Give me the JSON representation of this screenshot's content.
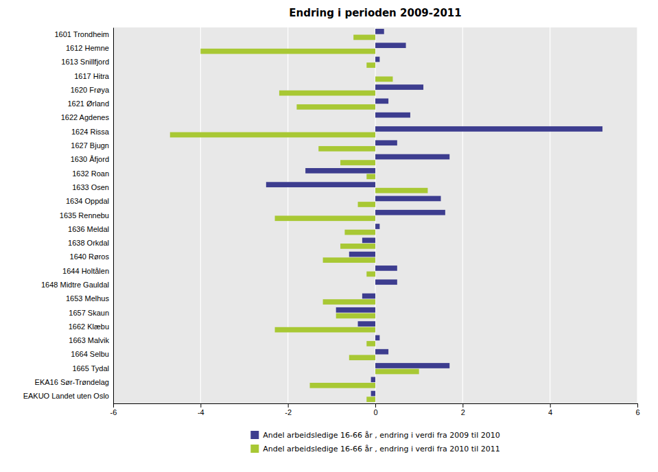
{
  "chart_data": {
    "type": "bar",
    "orientation": "horizontal",
    "title": "Endring i perioden 2009-2011",
    "categories": [
      "1601 Trondheim",
      "1612 Hemne",
      "1613 Snillfjord",
      "1617 Hitra",
      "1620 Frøya",
      "1621 Ørland",
      "1622 Agdenes",
      "1624 Rissa",
      "1627 Bjugn",
      "1630 Åfjord",
      "1632 Roan",
      "1633 Osen",
      "1634 Oppdal",
      "1635 Rennebu",
      "1636 Meldal",
      "1638 Orkdal",
      "1640 Røros",
      "1644 Holtålen",
      "1648 Midtre Gauldal",
      "1653 Melhus",
      "1657 Skaun",
      "1662 Klæbu",
      "1663 Malvik",
      "1664 Selbu",
      "1665 Tydal",
      "EKA16 Sør-Trøndelag",
      "EAKUO Landet uten Oslo"
    ],
    "series": [
      {
        "name": "Andel arbeidsledige 16-66 år , endring i verdi fra 2009 til 2010",
        "color": "#3d3d8f",
        "values": [
          0.2,
          0.7,
          0.1,
          0.0,
          1.1,
          0.3,
          0.8,
          5.2,
          0.5,
          1.7,
          -1.6,
          -2.5,
          1.5,
          1.6,
          0.1,
          -0.3,
          -0.6,
          0.5,
          0.5,
          -0.3,
          -0.9,
          -0.4,
          0.1,
          0.3,
          1.7,
          -0.1,
          -0.1
        ]
      },
      {
        "name": "Andel arbeidsledige 16-66 år , endring i verdi fra 2010 til 2011",
        "color": "#a8c834",
        "values": [
          -0.5,
          -4.0,
          -0.2,
          0.4,
          -2.2,
          -1.8,
          0.0,
          -4.7,
          -1.3,
          -0.8,
          -0.2,
          1.2,
          -0.4,
          -2.3,
          -0.7,
          -0.8,
          -1.2,
          -0.2,
          0.0,
          -1.2,
          -0.9,
          -2.3,
          -0.2,
          -0.6,
          1.0,
          -1.5,
          -0.2
        ]
      }
    ],
    "xlim": [
      -6,
      6
    ],
    "xticks": [
      -6,
      -4,
      -2,
      0,
      2,
      4,
      6
    ],
    "grid": true,
    "legend": "bottom"
  }
}
